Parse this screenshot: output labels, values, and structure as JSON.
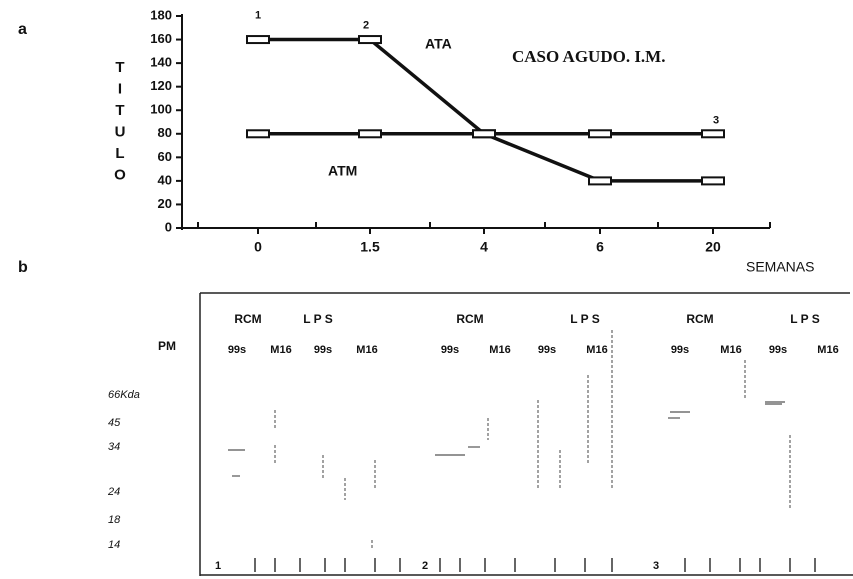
{
  "chart_data": {
    "type": "line",
    "panel_label": "a",
    "title": "CASO AGUDO. I.M.",
    "y_label": "TITULO",
    "x_label": "SEMANAS",
    "categories": [
      "0",
      "1.5",
      "4",
      "6",
      "20"
    ],
    "series": [
      {
        "name": "ATA",
        "color": "#111111",
        "values": [
          160,
          160,
          80,
          40,
          40
        ]
      },
      {
        "name": "ATM",
        "color": "#111111",
        "values": [
          80,
          80,
          80,
          80,
          80
        ]
      }
    ],
    "point_labels": [
      "1",
      "2",
      "3"
    ],
    "ylim": [
      0,
      180
    ],
    "yticks": [
      0,
      20,
      40,
      60,
      80,
      100,
      120,
      140,
      160,
      180
    ],
    "grid": false
  },
  "blot": {
    "panel_label": "b",
    "marker_title": "PM",
    "markers": [
      "66Kda",
      "45",
      "34",
      "24",
      "18",
      "14"
    ],
    "groups": [
      "RCM",
      "L P S",
      "RCM",
      "L P S",
      "RCM",
      "L P S"
    ],
    "lanes": [
      "99s",
      "M16",
      "99s",
      "M16",
      "99s",
      "M16",
      "99s",
      "M16",
      "99s",
      "M16",
      "99s",
      "M16"
    ],
    "lane_numbers": [
      "1",
      "2",
      "3"
    ]
  }
}
